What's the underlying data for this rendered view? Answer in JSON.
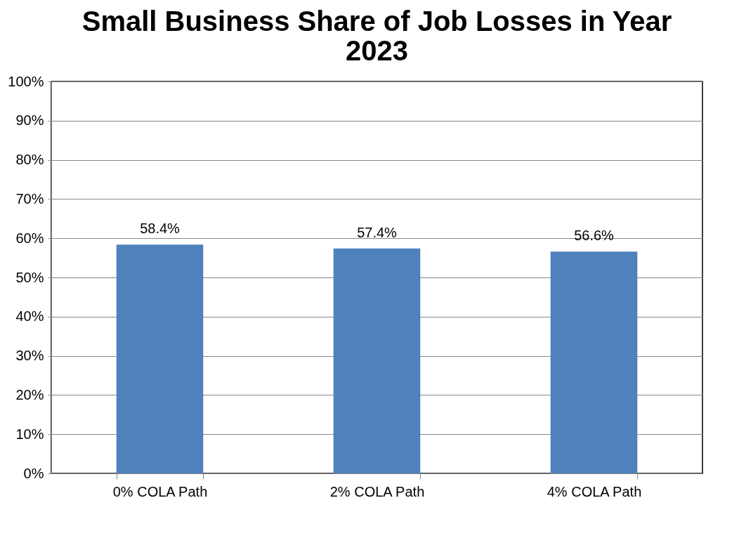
{
  "chart_data": {
    "type": "bar",
    "title": "Small Business Share of Job Losses in Year 2023",
    "categories": [
      "0% COLA Path",
      "2% COLA Path",
      "4% COLA Path"
    ],
    "values": [
      58.4,
      57.4,
      56.6
    ],
    "value_labels": [
      "58.4%",
      "57.4%",
      "56.6%"
    ],
    "color": "#4f81bd",
    "ylim": [
      0,
      100
    ],
    "yticks": [
      {
        "value": 0,
        "label": "0%"
      },
      {
        "value": 10,
        "label": "10%"
      },
      {
        "value": 20,
        "label": "20%"
      },
      {
        "value": 30,
        "label": "30%"
      },
      {
        "value": 40,
        "label": "40%"
      },
      {
        "value": 50,
        "label": "50%"
      },
      {
        "value": 60,
        "label": "60%"
      },
      {
        "value": 70,
        "label": "70%"
      },
      {
        "value": 80,
        "label": "80%"
      },
      {
        "value": 90,
        "label": "90%"
      },
      {
        "value": 100,
        "label": "100%"
      }
    ],
    "grid": "y"
  }
}
